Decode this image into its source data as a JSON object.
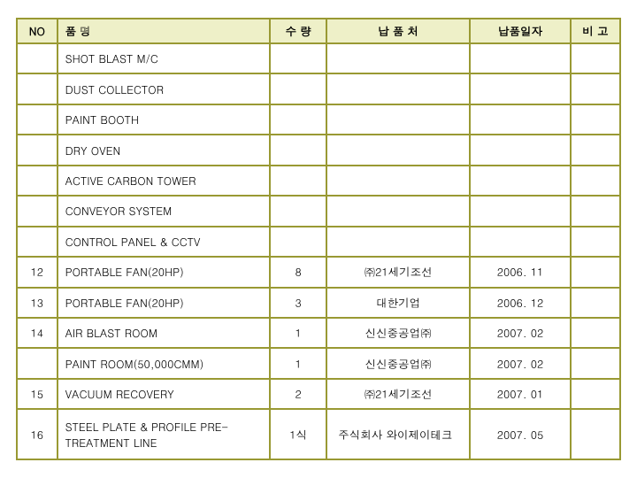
{
  "headers": {
    "no": "NO",
    "name": "품     명",
    "qty": "수 량",
    "vendor": "납 품 처",
    "date": "납품일자",
    "remark": "비 고"
  },
  "rows": [
    {
      "no": "",
      "name": "SHOT BLAST M/C",
      "qty": "",
      "vendor": "",
      "date": "",
      "remark": "",
      "vendorAlign": "center"
    },
    {
      "no": "",
      "name": "DUST COLLECTOR",
      "qty": "",
      "vendor": "",
      "date": "",
      "remark": "",
      "vendorAlign": "center"
    },
    {
      "no": "",
      "name": "PAINT BOOTH",
      "qty": "",
      "vendor": "",
      "date": "",
      "remark": "",
      "vendorAlign": "center"
    },
    {
      "no": "",
      "name": "DRY OVEN",
      "qty": "",
      "vendor": "",
      "date": "",
      "remark": "",
      "vendorAlign": "center"
    },
    {
      "no": "",
      "name": "ACTIVE CARBON TOWER",
      "qty": "",
      "vendor": "",
      "date": "",
      "remark": "",
      "vendorAlign": "center"
    },
    {
      "no": "",
      "name": "CONVEYOR SYSTEM",
      "qty": "",
      "vendor": "",
      "date": "",
      "remark": "",
      "vendorAlign": "center"
    },
    {
      "no": "",
      "name": "CONTROL PANEL & CCTV",
      "qty": "",
      "vendor": "",
      "date": "",
      "remark": "",
      "vendorAlign": "center"
    },
    {
      "no": "12",
      "name": "PORTABLE FAN(20HP)",
      "qty": "8",
      "vendor": "㈜21세기조선",
      "date": "2006. 11",
      "remark": "",
      "vendorAlign": "center"
    },
    {
      "no": "13",
      "name": "PORTABLE FAN(20HP)",
      "qty": "3",
      "vendor": "대한기업",
      "date": "2006. 12",
      "remark": "",
      "vendorAlign": "center"
    },
    {
      "no": "14",
      "name": "AIR BLAST ROOM",
      "qty": "1",
      "vendor": "신신중공업㈜",
      "date": "2007. 02",
      "remark": "",
      "vendorAlign": "center"
    },
    {
      "no": "",
      "name": "PAINT ROOM(50,000CMM)",
      "qty": "1",
      "vendor": "신신중공업㈜",
      "date": "2007. 02",
      "remark": "",
      "vendorAlign": "center"
    },
    {
      "no": "15",
      "name": "VACUUM RECOVERY",
      "qty": "2",
      "vendor": "㈜21세기조선",
      "date": "2007. 01",
      "remark": "",
      "vendorAlign": "center"
    },
    {
      "no": "16",
      "name": "STEEL PLATE & PROFILE PRE-TREATMENT LINE",
      "qty": "1식",
      "vendor": "주식회사 와이제이테크",
      "date": "2007. 05",
      "remark": "",
      "vendorAlign": "left"
    }
  ],
  "style": {
    "header_bg": "#eef0c8",
    "border_color": "#999933",
    "cell_bg": "#ffffff",
    "font_size": 12.5
  }
}
